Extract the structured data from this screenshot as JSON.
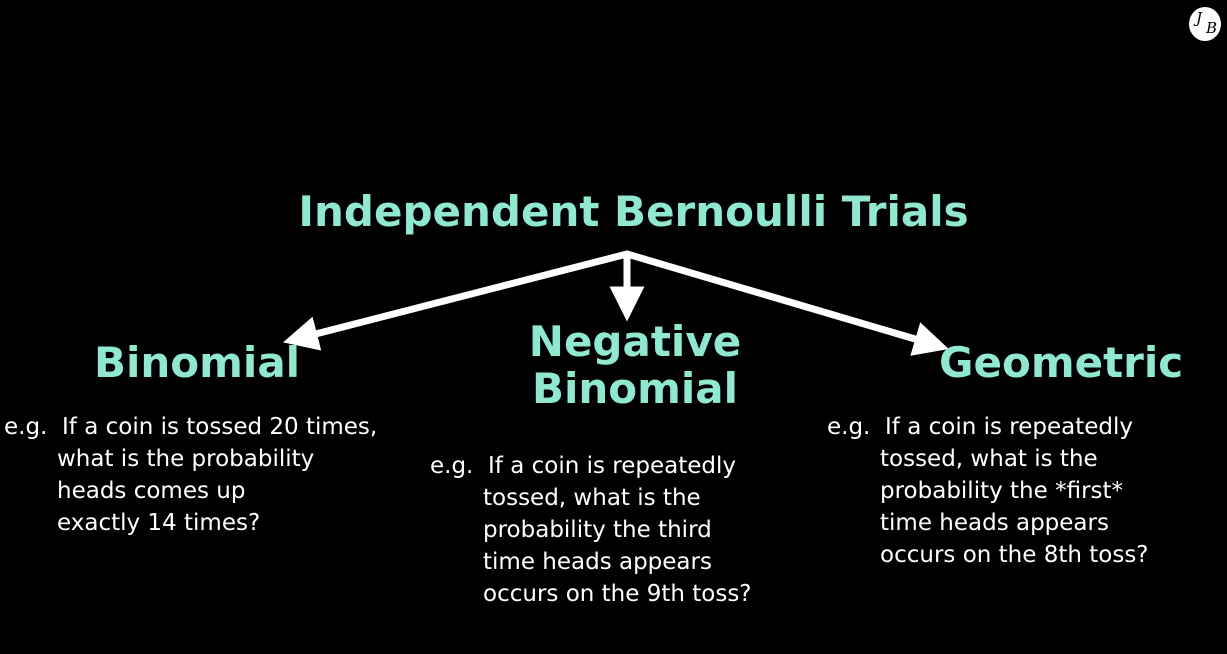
{
  "root": {
    "title": "Independent Bernoulli Trials"
  },
  "branches": {
    "binomial": {
      "title": "Binomial",
      "example_prefix": "e.g.",
      "example_lines": [
        "If a coin is tossed 20 times,",
        "what is the probability",
        "heads comes up",
        "exactly 14 times?"
      ]
    },
    "negative_binomial": {
      "title": "Negative Binomial",
      "example_prefix": "e.g.",
      "example_lines": [
        "If a coin is repeatedly",
        "tossed, what is the",
        "probability the third",
        "time heads appears",
        "occurs on the 9th toss?"
      ]
    },
    "geometric": {
      "title": "Geometric",
      "example_prefix": "e.g.",
      "example_lines": [
        "If a coin is repeatedly",
        "tossed, what is the",
        "probability the *first*",
        "time heads appears",
        "occurs on the 8th toss?"
      ]
    }
  },
  "logo": {
    "letters": "JB"
  },
  "colors": {
    "background": "#000000",
    "heading": "#8fe8cf",
    "body_text": "#ffffff",
    "arrow": "#ffffff"
  }
}
